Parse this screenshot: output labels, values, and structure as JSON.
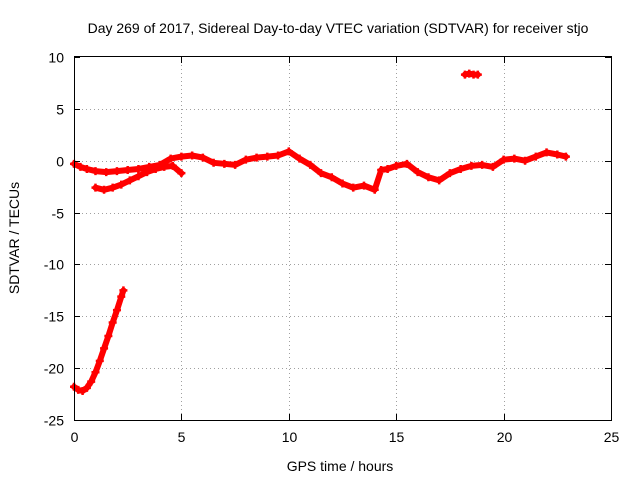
{
  "chart_data": {
    "type": "scatter",
    "title": "Day 269 of 2017, Sidereal Day-to-day VTEC variation (SDTVAR) for receiver stjo",
    "xlabel": "GPS time / hours",
    "ylabel": "SDTVAR / TECUs",
    "xlim": [
      0,
      25
    ],
    "ylim": [
      -25,
      10
    ],
    "xticks": [
      0,
      5,
      10,
      15,
      20,
      25
    ],
    "xtick_labels": [
      "0",
      "5",
      "10",
      "15",
      "20",
      "25"
    ],
    "yticks": [
      -25,
      -20,
      -15,
      -10,
      -5,
      0,
      5,
      10
    ],
    "ytick_labels": [
      "-25",
      "-20",
      "-15",
      "-10",
      "-5",
      "0",
      "5",
      "10"
    ],
    "grid": true,
    "legend": "none",
    "marker_color": "#ff0000",
    "series": [
      {
        "name": "main-band",
        "x": [
          0.0,
          0.3,
          0.6,
          1.0,
          1.5,
          2.0,
          2.5,
          3.0,
          3.5,
          4.0,
          4.5,
          5.0,
          5.5,
          6.0,
          6.5,
          7.0,
          7.5,
          8.0,
          8.5,
          9.0,
          9.5,
          10.0,
          10.5,
          11.0,
          11.5,
          12.0,
          12.5,
          13.0,
          13.5,
          14.0,
          14.3,
          14.6,
          15.0,
          15.5,
          16.0,
          16.5,
          17.0,
          17.5,
          18.0,
          18.5,
          19.0,
          19.5,
          20.0,
          20.5,
          21.0,
          21.5,
          22.0,
          22.5,
          22.9
        ],
        "y": [
          -0.3,
          -0.6,
          -0.8,
          -1.0,
          -1.1,
          -1.0,
          -0.9,
          -0.8,
          -0.6,
          -0.4,
          0.2,
          0.4,
          0.5,
          0.3,
          -0.2,
          -0.3,
          -0.4,
          0.1,
          0.3,
          0.4,
          0.5,
          0.9,
          0.2,
          -0.4,
          -1.2,
          -1.6,
          -2.2,
          -2.6,
          -2.4,
          -2.8,
          -0.9,
          -0.8,
          -0.5,
          -0.3,
          -1.1,
          -1.6,
          -1.9,
          -1.2,
          -0.8,
          -0.5,
          -0.4,
          -0.6,
          0.1,
          0.2,
          0.0,
          0.4,
          0.8,
          0.6,
          0.4
        ]
      },
      {
        "name": "early-arc",
        "x": [
          1.0,
          1.4,
          1.8,
          2.2,
          2.6,
          3.0,
          3.4,
          3.8,
          4.2,
          4.6,
          5.0
        ],
        "y": [
          -2.6,
          -2.8,
          -2.6,
          -2.3,
          -1.9,
          -1.5,
          -1.1,
          -0.8,
          -0.6,
          -0.5,
          -1.2
        ]
      },
      {
        "name": "low-segment",
        "x": [
          0.0,
          0.2,
          0.4,
          0.6,
          0.8,
          1.0,
          1.2,
          1.4,
          1.6,
          1.8,
          2.0,
          2.2,
          2.3
        ],
        "y": [
          -21.8,
          -22.1,
          -22.2,
          -21.9,
          -21.3,
          -20.4,
          -19.3,
          -18.1,
          -16.9,
          -15.6,
          -14.4,
          -13.1,
          -12.5
        ]
      },
      {
        "name": "outlier",
        "x": [
          18.2,
          18.4,
          18.6,
          18.8
        ],
        "y": [
          8.3,
          8.4,
          8.3,
          8.3
        ]
      }
    ]
  }
}
